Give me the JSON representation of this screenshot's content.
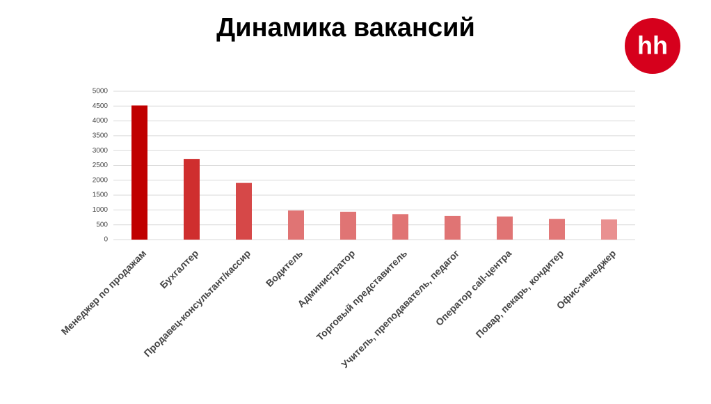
{
  "logo": "hh",
  "chart_data": {
    "type": "bar",
    "title": "Динамика вакансий",
    "categories": [
      "Менеджер по продажам",
      "Бухгалтер",
      "Продавец-консультант/кассир",
      "Водитель",
      "Администратор",
      "Торговый представитель",
      "Учитель, преподаватель, педагог",
      "Оператор call-центра",
      "Повар, пекарь, кондитер",
      "Офис-менеджер"
    ],
    "values": [
      4520,
      2720,
      1910,
      980,
      940,
      860,
      800,
      780,
      700,
      680
    ],
    "colors": [
      "#c00000",
      "#cf2e2e",
      "#d64848",
      "#e07474",
      "#e07474",
      "#e07474",
      "#e07474",
      "#e07474",
      "#e27878",
      "#e99090"
    ],
    "ylim": [
      0,
      5000
    ],
    "yticks": [
      0,
      500,
      1000,
      1500,
      2000,
      2500,
      3000,
      3500,
      4000,
      4500,
      5000
    ],
    "grid": true
  }
}
